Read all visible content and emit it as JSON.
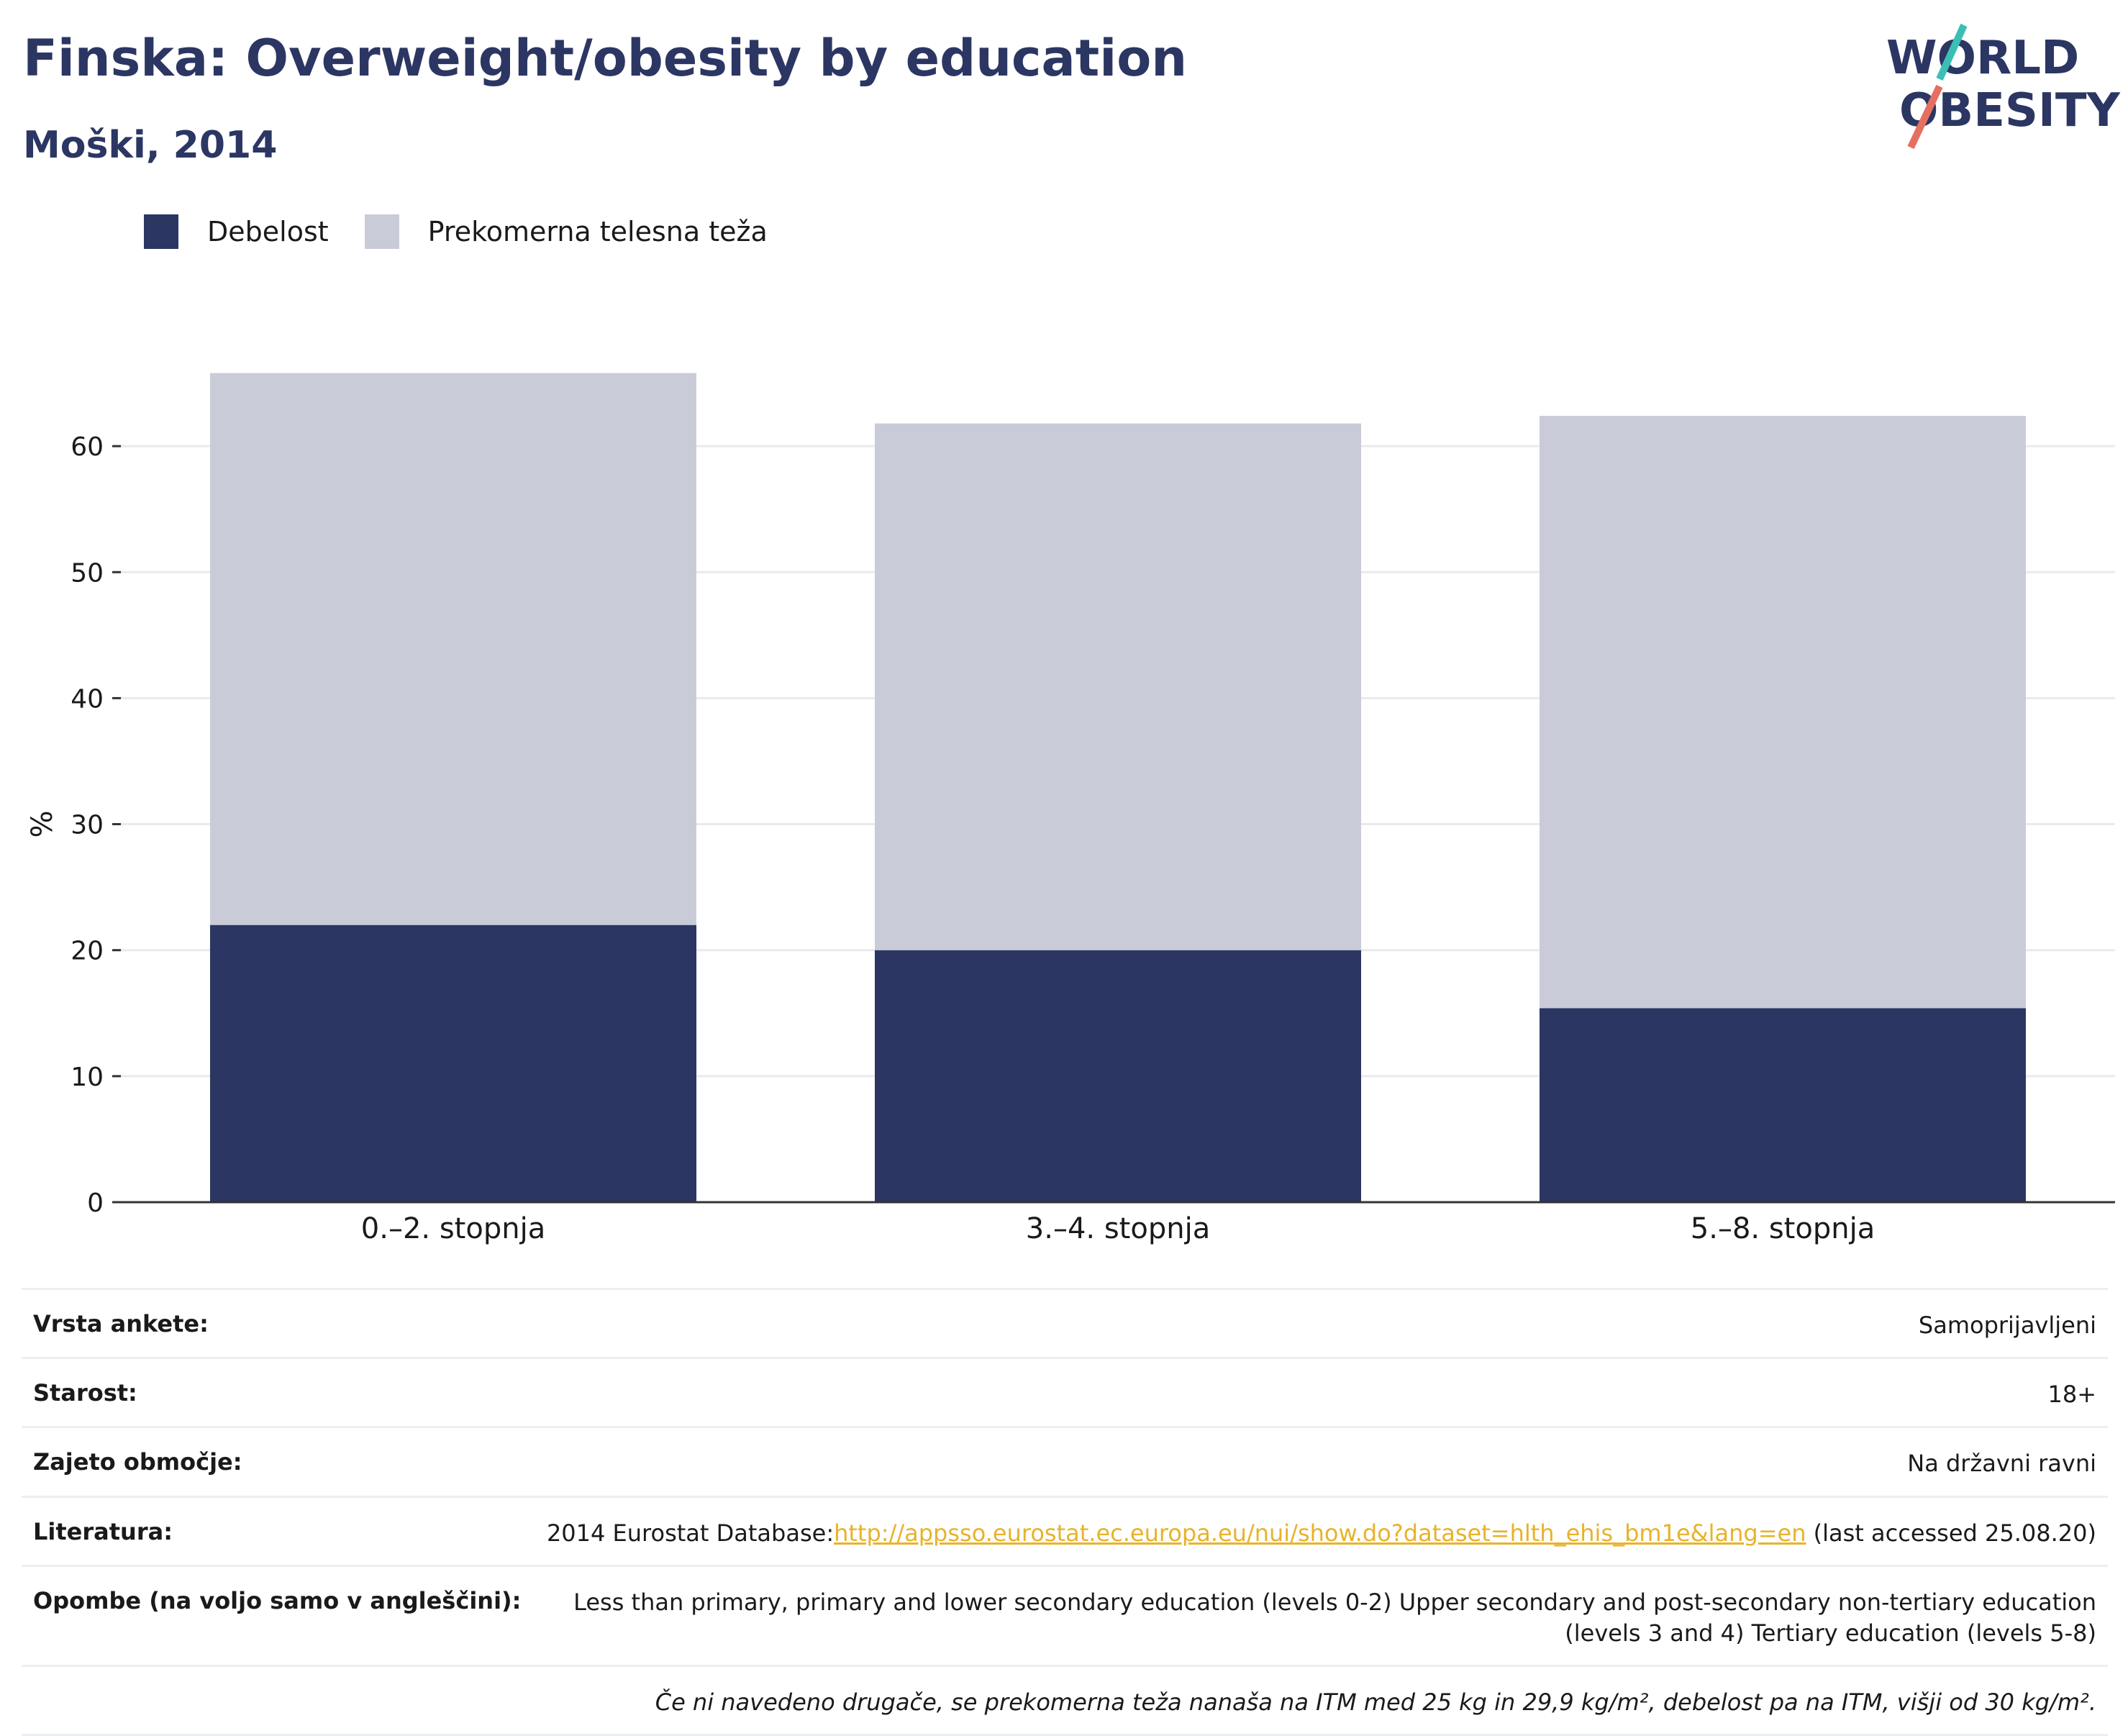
{
  "header": {
    "title": "Finska: Overweight/obesity by education",
    "subtitle": "Moški, 2014"
  },
  "logo": {
    "line1": "WORLD",
    "line2": "OBESITY"
  },
  "colors": {
    "obesity": "#2b3663",
    "overweight": "#c9ccd8",
    "title": "#2b3663",
    "link": "#e8b32a"
  },
  "chart_data": {
    "type": "bar",
    "stacked": true,
    "categories": [
      "0.–2. stopnja",
      "3.–4. stopnja",
      "5.–8. stopnja"
    ],
    "series": [
      {
        "name": "Debelost",
        "values": [
          22.0,
          20.0,
          15.4
        ]
      },
      {
        "name": "Prekomerna telesna teža",
        "values": [
          43.8,
          41.8,
          47.0
        ]
      }
    ],
    "ylabel": "%",
    "ylim": [
      0,
      68
    ],
    "yticks": [
      0,
      10,
      20,
      30,
      40,
      50,
      60
    ],
    "grid": true,
    "legend": "top-left"
  },
  "info": {
    "survey_type": {
      "label": "Vrsta ankete:",
      "value": "Samoprijavljeni"
    },
    "age": {
      "label": "Starost:",
      "value": "18+"
    },
    "area": {
      "label": "Zajeto območje:",
      "value": "Na državni ravni"
    },
    "literature": {
      "label": "Literatura:",
      "prefix": "2014 Eurostat Database:",
      "link": "http://appsso.eurostat.ec.europa.eu/nui/show.do?dataset=hlth_ehis_bm1e&lang=en",
      "suffix": " (last accessed 25.08.20)"
    },
    "notes": {
      "label": "Opombe (na voljo samo v angleščini):",
      "value": "Less than primary, primary and lower secondary education (levels 0-2) Upper secondary and post-secondary non-tertiary education (levels 3 and 4) Tertiary education (levels 5-8)"
    },
    "footnote": "Če ni navedeno drugače, se prekomerna teža nanaša na ITM med 25 kg in 29,9 kg/m², debelost pa na ITM, višji od 30 kg/m²."
  }
}
